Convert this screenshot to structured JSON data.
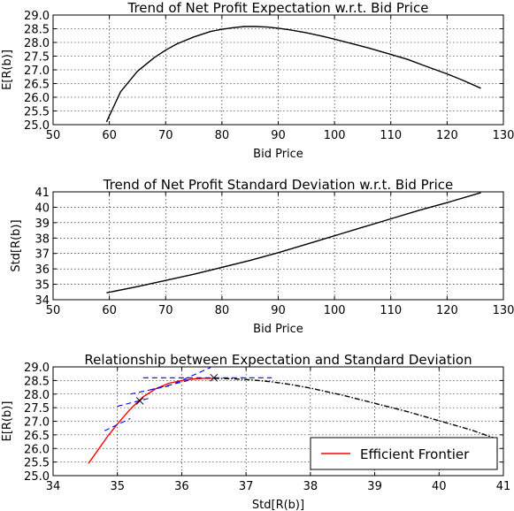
{
  "chart_data": [
    {
      "type": "line",
      "title": "Trend of Net Profit Expectation w.r.t. Bid Price",
      "xlabel": "Bid Price",
      "ylabel": "E[R(b)]",
      "xlim": [
        50,
        130
      ],
      "ylim": [
        25.0,
        29.0
      ],
      "xticks": [
        "50",
        "60",
        "70",
        "80",
        "90",
        "100",
        "110",
        "120",
        "130"
      ],
      "yticks": [
        "25.0",
        "25.5",
        "26.0",
        "26.5",
        "27.0",
        "27.5",
        "28.0",
        "28.5",
        "29.0"
      ],
      "grid": true,
      "series": [
        {
          "color": "#000000",
          "x": [
            59.5,
            62,
            65,
            68,
            70,
            72,
            75,
            78,
            80,
            82,
            84,
            86,
            88,
            90,
            92,
            95,
            98,
            100,
            103,
            106,
            110,
            113,
            116,
            120,
            123,
            126
          ],
          "y": [
            25.1,
            26.2,
            26.95,
            27.45,
            27.72,
            27.95,
            28.2,
            28.4,
            28.48,
            28.54,
            28.58,
            28.58,
            28.56,
            28.52,
            28.46,
            28.35,
            28.22,
            28.12,
            27.96,
            27.8,
            27.56,
            27.38,
            27.15,
            26.85,
            26.6,
            26.33
          ]
        }
      ]
    },
    {
      "type": "line",
      "title": "Trend of Net Profit Standard Deviation w.r.t. Bid Price",
      "xlabel": "Bid Price",
      "ylabel": "Std[R(b)]",
      "xlim": [
        50,
        130
      ],
      "ylim": [
        34,
        41
      ],
      "xticks": [
        "50",
        "60",
        "70",
        "80",
        "90",
        "100",
        "110",
        "120",
        "130"
      ],
      "yticks": [
        "34",
        "35",
        "36",
        "37",
        "38",
        "39",
        "40",
        "41"
      ],
      "grid": true,
      "series": [
        {
          "color": "#000000",
          "x": [
            59.5,
            65,
            70,
            75,
            80,
            85,
            90,
            95,
            100,
            105,
            110,
            115,
            120,
            126
          ],
          "y": [
            34.45,
            34.85,
            35.25,
            35.65,
            36.1,
            36.55,
            37.05,
            37.6,
            38.15,
            38.7,
            39.25,
            39.8,
            40.3,
            40.95
          ]
        }
      ]
    },
    {
      "type": "line",
      "title": "Relationship between Expectation and Standard Deviation",
      "xlabel": "Std[R(b)]",
      "ylabel": "E[R(b)]",
      "xlim": [
        34,
        41
      ],
      "ylim": [
        25.0,
        29.0
      ],
      "xticks": [
        "34",
        "35",
        "36",
        "37",
        "38",
        "39",
        "40",
        "41"
      ],
      "yticks": [
        "25.0",
        "25.5",
        "26.0",
        "26.5",
        "27.0",
        "27.5",
        "28.0",
        "28.5",
        "29.0"
      ],
      "grid": true,
      "legend": "lower-right",
      "series": [
        {
          "name": "Efficient Frontier",
          "color": "#ff0000",
          "style": "solid",
          "x": [
            34.55,
            34.7,
            34.85,
            35.0,
            35.2,
            35.4,
            35.6,
            35.8,
            36.0,
            36.2,
            36.35,
            36.5
          ],
          "y": [
            25.45,
            25.95,
            26.45,
            26.9,
            27.45,
            27.9,
            28.2,
            28.4,
            28.5,
            28.56,
            28.58,
            28.58
          ]
        },
        {
          "color": "#000000",
          "style": "dashdot",
          "x": [
            36.5,
            36.8,
            37.1,
            37.4,
            37.7,
            38.0,
            38.5,
            39.0,
            39.5,
            40.0,
            40.5,
            40.9
          ],
          "y": [
            28.58,
            28.56,
            28.52,
            28.45,
            28.35,
            28.22,
            27.96,
            27.66,
            27.36,
            27.02,
            26.68,
            26.35
          ]
        },
        {
          "color": "#0000ff",
          "style": "dashed",
          "segments": [
            [
              [
                34.8,
                26.65
              ],
              [
                35.2,
                27.1
              ]
            ],
            [
              [
                35.0,
                27.55
              ],
              [
                35.5,
                27.85
              ]
            ],
            [
              [
                35.2,
                28.0
              ],
              [
                35.8,
                28.3
              ]
            ],
            [
              [
                35.5,
                28.15
              ],
              [
                36.1,
                28.5
              ]
            ],
            [
              [
                35.9,
                28.4
              ],
              [
                36.45,
                28.98
              ]
            ],
            [
              [
                35.4,
                28.6
              ],
              [
                37.4,
                28.6
              ]
            ]
          ]
        },
        {
          "color": "#000000",
          "style": "marker-x",
          "x": [
            35.35,
            36.5
          ],
          "y": [
            27.75,
            28.6
          ]
        }
      ]
    }
  ]
}
